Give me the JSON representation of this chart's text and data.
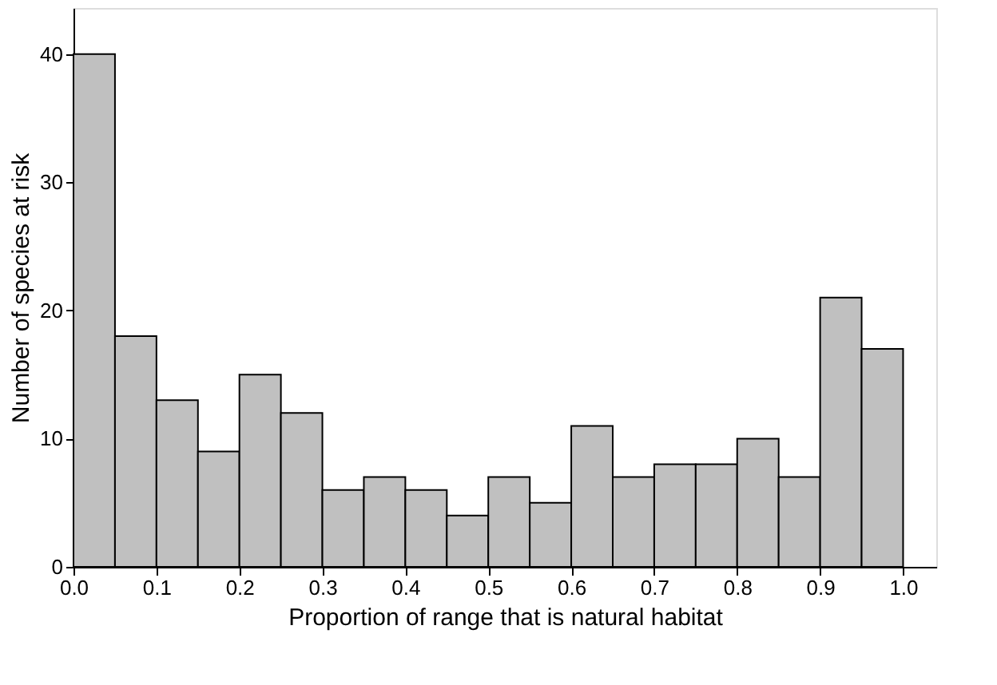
{
  "chart_data": {
    "type": "histogram",
    "xlabel": "Proportion of range that is natural habitat",
    "ylabel": "Number of species at risk",
    "bins": [
      0,
      0.05,
      0.1,
      0.15,
      0.2,
      0.25,
      0.3,
      0.35,
      0.4,
      0.45,
      0.5,
      0.55,
      0.6,
      0.65,
      0.7,
      0.75,
      0.8,
      0.85,
      0.9,
      0.95,
      1.0
    ],
    "values": [
      40,
      18,
      13,
      9,
      15,
      12,
      6,
      7,
      6,
      4,
      7,
      5,
      11,
      7,
      8,
      8,
      10,
      7,
      21,
      17
    ],
    "color": "#c0c0c0",
    "xlim": [
      0,
      1.04
    ],
    "xticks": [
      {
        "value": 0,
        "label": "0.0"
      },
      0.1,
      0.2,
      0.3,
      0.4,
      0.5,
      0.6,
      0.7,
      0.8,
      0.9,
      {
        "value": 1,
        "label": "1.0"
      }
    ],
    "ylim": [
      0,
      43.6
    ],
    "yticks": [
      0,
      10,
      20,
      30,
      40
    ],
    "grid": false
  }
}
